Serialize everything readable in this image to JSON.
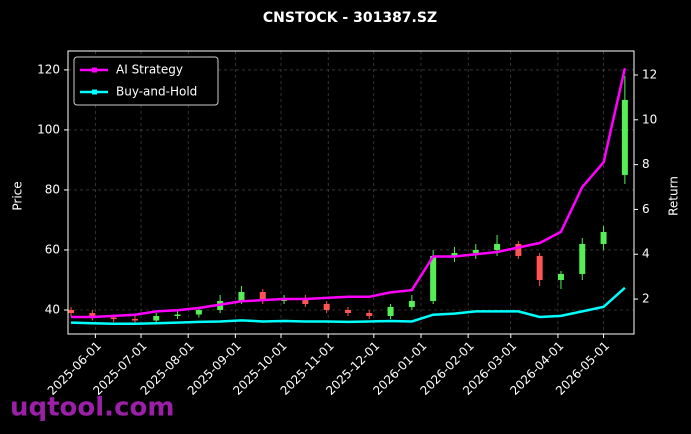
{
  "chart_data": {
    "type": "candlestick",
    "title": "CNSTOCK - 301387.SZ",
    "ylabel": "Price",
    "y2label": "Return",
    "watermark": "uqtool.com",
    "x": [
      "2025-05-16",
      "2025-05-30",
      "2025-06-13",
      "2025-06-27",
      "2025-07-11",
      "2025-07-25",
      "2025-08-08",
      "2025-08-22",
      "2025-09-05",
      "2025-09-19",
      "2025-10-03",
      "2025-10-17",
      "2025-10-31",
      "2025-11-14",
      "2025-11-28",
      "2025-12-12",
      "2025-12-26",
      "2026-01-09",
      "2026-01-23",
      "2026-02-06",
      "2026-02-20",
      "2026-03-06",
      "2026-03-20",
      "2026-04-03",
      "2026-04-17",
      "2026-05-01",
      "2026-05-15"
    ],
    "open": [
      40,
      39,
      37.5,
      37,
      36.5,
      38,
      38.5,
      40,
      43,
      46,
      43,
      44,
      42,
      40,
      39,
      38,
      41,
      43,
      58,
      59,
      60,
      62,
      58,
      50,
      52,
      62,
      85
    ],
    "high": [
      41,
      40,
      38.5,
      38,
      39,
      40,
      41,
      45,
      48,
      47,
      45,
      45,
      43,
      41,
      40,
      42,
      45,
      60,
      61,
      62,
      65,
      63,
      59,
      53,
      64,
      68,
      118
    ],
    "low": [
      38,
      36.5,
      36,
      35.5,
      35.5,
      37,
      37.5,
      39,
      42,
      42,
      42,
      41,
      39,
      38,
      37,
      37,
      40,
      42,
      56,
      57,
      58,
      57,
      48,
      47,
      50,
      60,
      82
    ],
    "close": [
      39,
      37.5,
      37,
      36.5,
      38,
      38.5,
      40,
      43,
      46,
      43,
      44,
      42,
      40,
      39,
      38,
      41,
      43,
      58,
      59,
      60,
      62,
      58,
      50,
      52,
      62,
      66,
      110
    ],
    "up_color": "#55ee55",
    "down_color": "#ff5555",
    "series": [
      {
        "name": "AI Strategy",
        "color": "#ff00ff",
        "axis": "y2",
        "values": [
          1.2,
          1.2,
          1.25,
          1.3,
          1.45,
          1.5,
          1.6,
          1.75,
          1.9,
          1.95,
          2.0,
          2.0,
          2.05,
          2.1,
          2.1,
          2.3,
          2.4,
          3.9,
          3.9,
          4.0,
          4.1,
          4.3,
          4.5,
          5.0,
          7.0,
          8.1,
          12.3
        ]
      },
      {
        "name": "Buy-and-Hold",
        "color": "#00ffff",
        "axis": "y2",
        "values": [
          0.95,
          0.92,
          0.9,
          0.9,
          0.92,
          0.95,
          0.98,
          1.0,
          1.05,
          1.0,
          1.02,
          1.0,
          1.0,
          0.98,
          1.0,
          1.02,
          1.0,
          1.3,
          1.35,
          1.45,
          1.45,
          1.45,
          1.2,
          1.25,
          1.45,
          1.65,
          2.5
        ]
      }
    ],
    "xlim": [
      "2025-05-14",
      "2026-05-21"
    ],
    "xticks": [
      "2025-06-01",
      "2025-07-01",
      "2025-08-01",
      "2025-09-01",
      "2025-10-01",
      "2025-11-01",
      "2025-12-01",
      "2026-01-01",
      "2026-02-01",
      "2026-03-01",
      "2026-04-01",
      "2026-05-01"
    ],
    "ylim": [
      32,
      126.3
    ],
    "yticks": [
      40,
      60,
      80,
      100,
      120
    ],
    "y2lim": [
      0.44,
      13.07
    ],
    "y2ticks": [
      2,
      4,
      6,
      8,
      10,
      12
    ],
    "grid": true,
    "legend": "upper left"
  }
}
